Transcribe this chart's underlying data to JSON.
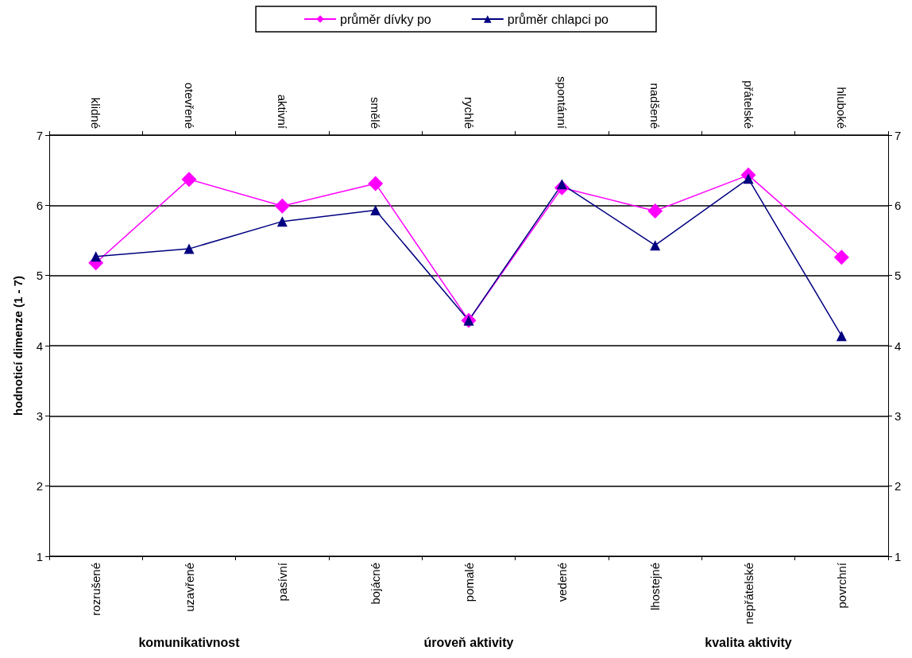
{
  "chart_data": {
    "type": "line",
    "ylabel": "hodnoticí dimenze (1 - 7)",
    "categories": [
      "rozrušené",
      "uzavřené",
      "pasívní",
      "bojácné",
      "pomalé",
      "vedené",
      "lhostejné",
      "nepřátelské",
      "povrchní"
    ],
    "series": [
      {
        "name": "průměr dívky po",
        "color": "#ff00ff",
        "marker": "diamond",
        "values": [
          5.18,
          6.37,
          5.99,
          6.31,
          4.36,
          6.25,
          5.92,
          6.43,
          5.26
        ]
      },
      {
        "name": "průměr chlapci po",
        "color": "#000080",
        "marker": "triangle",
        "values": [
          5.27,
          5.38,
          5.77,
          5.93,
          4.36,
          6.3,
          5.43,
          6.38,
          4.14
        ]
      }
    ],
    "ylim": [
      1,
      7
    ],
    "yticks": [
      1,
      2,
      3,
      4,
      5,
      6,
      7
    ],
    "y2lim": [
      1,
      7
    ],
    "y2ticks": [
      1,
      2,
      3,
      4,
      5,
      6,
      7
    ],
    "grid": "y",
    "legend": "top",
    "line_style": "solid",
    "annotations": [
      "klidné",
      "otevřené",
      "aktivní",
      "smělé",
      "rychlé",
      "spontánní",
      "nadšené",
      "přátelské",
      "hluboké",
      "komunikativnost",
      "úroveň aktivity",
      "kvalita aktivity"
    ]
  }
}
